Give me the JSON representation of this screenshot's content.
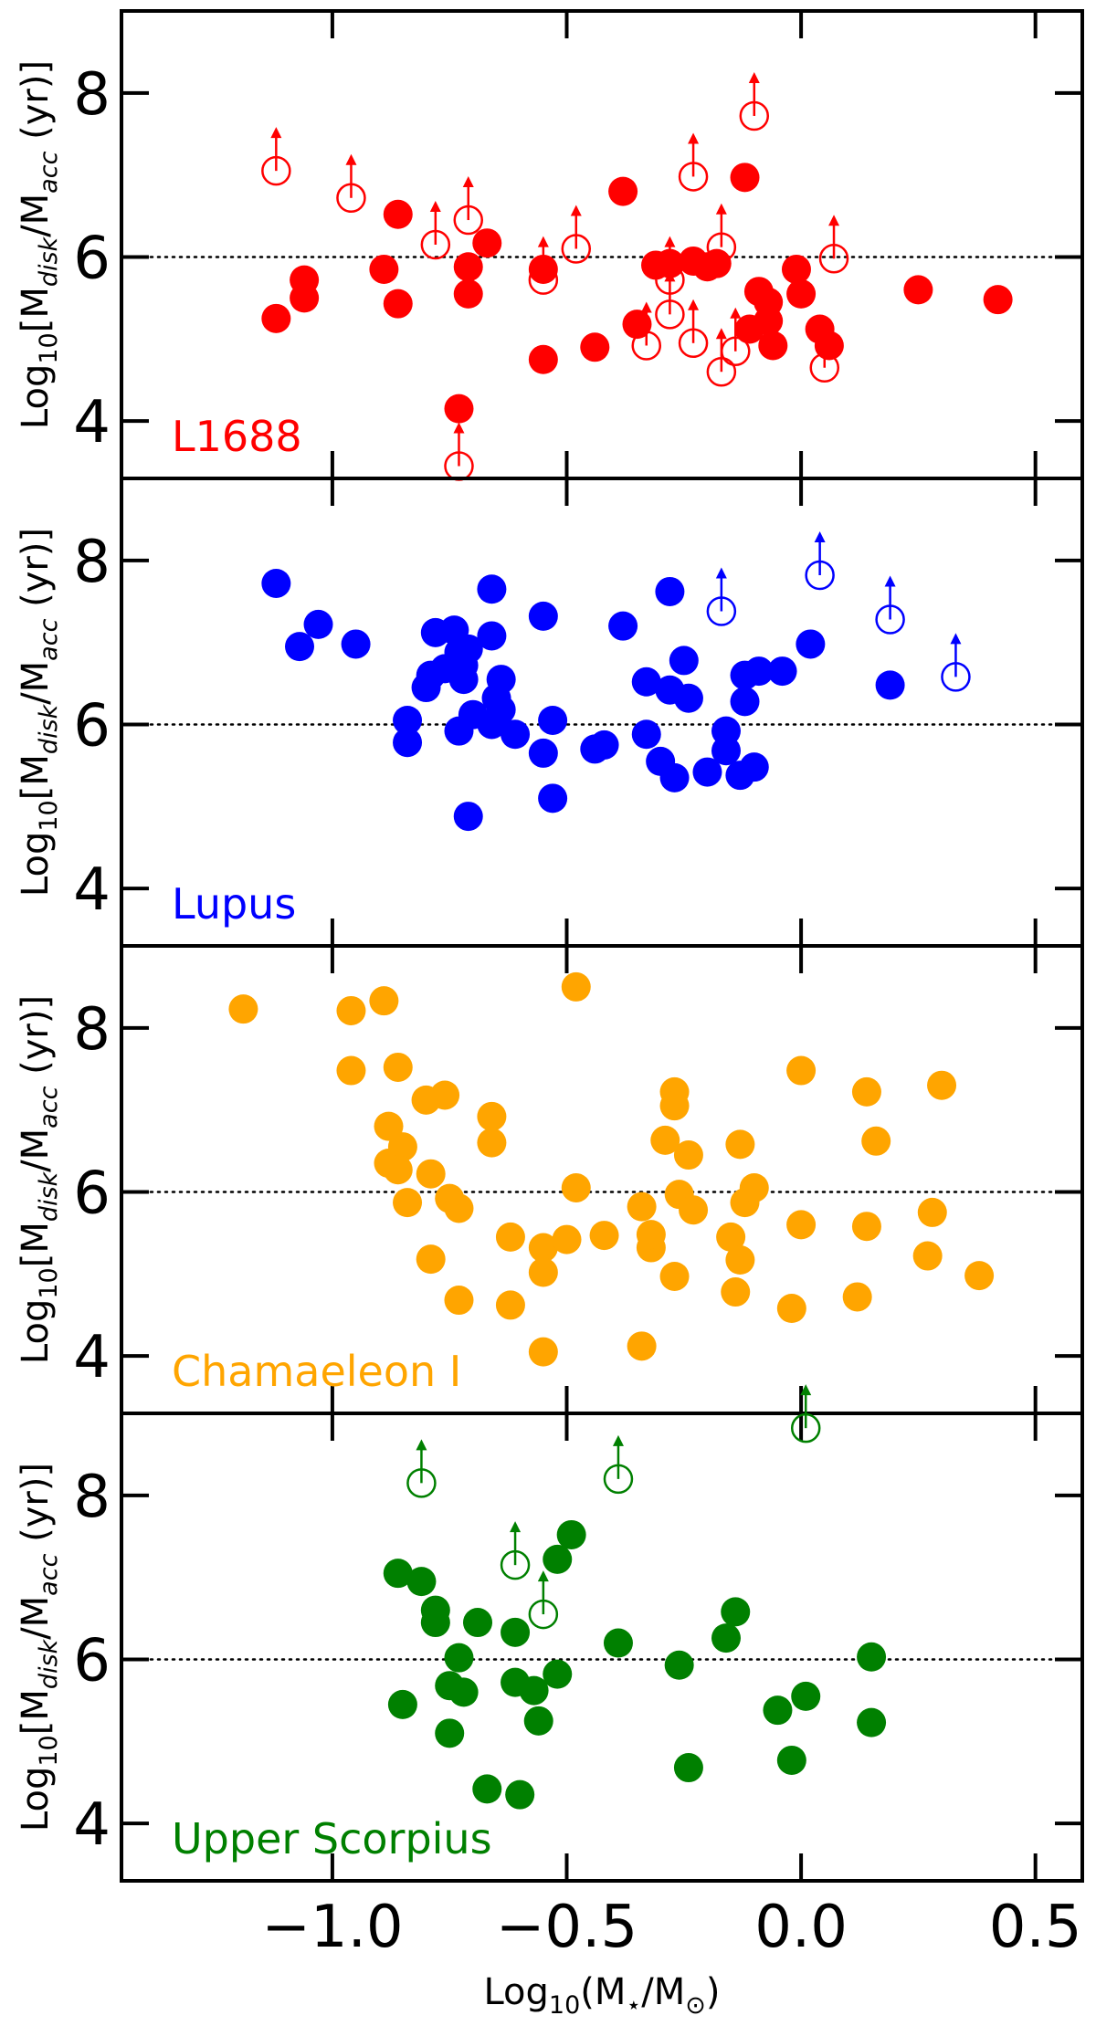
{
  "chart_data": {
    "type": "scatter",
    "xlabel": "Log₁₀(M⋆/M⊙)",
    "ylabel": "Log₁₀[M_disk/M_acc (yr)]",
    "xlim": [
      -1.45,
      0.6
    ],
    "ylim": [
      3.3,
      9.0
    ],
    "x_ticks": [
      -1.0,
      -0.5,
      0.0,
      0.5
    ],
    "x_tick_labels": [
      "−1.0",
      "−0.5",
      "0.0",
      "0.5"
    ],
    "y_ticks": [
      4,
      6,
      8
    ],
    "y_tick_labels": [
      "4",
      "6",
      "8"
    ],
    "reference_line_y": 6,
    "grid": false,
    "panels": [
      {
        "label": "L1688",
        "color": "#ff0000",
        "points": [
          [
            -1.12,
            5.25
          ],
          [
            -1.06,
            5.72
          ],
          [
            -1.06,
            5.5
          ],
          [
            -0.89,
            5.85
          ],
          [
            -0.86,
            6.52
          ],
          [
            -0.86,
            5.43
          ],
          [
            -0.71,
            5.88
          ],
          [
            -0.71,
            5.55
          ],
          [
            -0.67,
            6.17
          ],
          [
            -0.73,
            4.15
          ],
          [
            -0.55,
            5.85
          ],
          [
            -0.55,
            4.75
          ],
          [
            -0.44,
            4.9
          ],
          [
            -0.38,
            6.8
          ],
          [
            -0.35,
            5.18
          ],
          [
            -0.31,
            5.9
          ],
          [
            -0.28,
            5.92
          ],
          [
            -0.23,
            5.95
          ],
          [
            -0.2,
            5.88
          ],
          [
            -0.18,
            5.92
          ],
          [
            -0.12,
            6.97
          ],
          [
            -0.11,
            5.12
          ],
          [
            -0.09,
            5.58
          ],
          [
            -0.07,
            5.45
          ],
          [
            -0.07,
            5.22
          ],
          [
            -0.06,
            4.92
          ],
          [
            -0.01,
            5.85
          ],
          [
            0.0,
            5.55
          ],
          [
            0.04,
            5.12
          ],
          [
            0.06,
            4.92
          ],
          [
            0.25,
            5.6
          ],
          [
            0.42,
            5.48
          ]
        ],
        "lower_limits": [
          [
            -1.12,
            7.05
          ],
          [
            -0.96,
            6.72
          ],
          [
            -0.78,
            6.15
          ],
          [
            -0.71,
            6.45
          ],
          [
            -0.73,
            3.45
          ],
          [
            -0.55,
            5.72
          ],
          [
            -0.48,
            6.1
          ],
          [
            -0.33,
            4.92
          ],
          [
            -0.28,
            5.3
          ],
          [
            -0.28,
            5.72
          ],
          [
            -0.23,
            6.98
          ],
          [
            -0.23,
            4.95
          ],
          [
            -0.17,
            4.6
          ],
          [
            -0.17,
            6.12
          ],
          [
            -0.14,
            4.85
          ],
          [
            -0.1,
            7.72
          ],
          [
            0.05,
            4.65
          ],
          [
            0.07,
            5.98
          ]
        ]
      },
      {
        "label": "Lupus",
        "color": "#0000ff",
        "points": [
          [
            -1.12,
            7.72
          ],
          [
            -1.07,
            6.95
          ],
          [
            -1.03,
            7.22
          ],
          [
            -0.95,
            6.98
          ],
          [
            -0.84,
            6.05
          ],
          [
            -0.84,
            5.78
          ],
          [
            -0.78,
            7.12
          ],
          [
            -0.79,
            6.6
          ],
          [
            -0.8,
            6.45
          ],
          [
            -0.76,
            6.68
          ],
          [
            -0.74,
            7.15
          ],
          [
            -0.73,
            6.88
          ],
          [
            -0.72,
            6.55
          ],
          [
            -0.71,
            6.92
          ],
          [
            -0.72,
            6.72
          ],
          [
            -0.7,
            6.12
          ],
          [
            -0.73,
            5.92
          ],
          [
            -0.71,
            4.88
          ],
          [
            -0.66,
            7.08
          ],
          [
            -0.66,
            7.65
          ],
          [
            -0.65,
            6.32
          ],
          [
            -0.66,
            6.0
          ],
          [
            -0.64,
            6.55
          ],
          [
            -0.64,
            6.18
          ],
          [
            -0.61,
            5.88
          ],
          [
            -0.55,
            7.32
          ],
          [
            -0.55,
            5.65
          ],
          [
            -0.53,
            6.05
          ],
          [
            -0.53,
            5.1
          ],
          [
            -0.44,
            5.7
          ],
          [
            -0.42,
            5.75
          ],
          [
            -0.38,
            7.2
          ],
          [
            -0.33,
            6.52
          ],
          [
            -0.33,
            5.88
          ],
          [
            -0.3,
            5.55
          ],
          [
            -0.28,
            7.62
          ],
          [
            -0.28,
            6.42
          ],
          [
            -0.27,
            5.35
          ],
          [
            -0.25,
            6.78
          ],
          [
            -0.24,
            6.32
          ],
          [
            -0.2,
            5.42
          ],
          [
            -0.16,
            5.92
          ],
          [
            -0.16,
            5.68
          ],
          [
            -0.13,
            5.38
          ],
          [
            -0.12,
            6.6
          ],
          [
            -0.12,
            6.28
          ],
          [
            -0.1,
            5.48
          ],
          [
            -0.09,
            6.65
          ],
          [
            -0.04,
            6.65
          ],
          [
            0.02,
            6.98
          ],
          [
            0.19,
            6.48
          ]
        ],
        "lower_limits": [
          [
            -0.17,
            7.38
          ],
          [
            0.04,
            7.82
          ],
          [
            0.19,
            7.28
          ],
          [
            0.33,
            6.58
          ]
        ]
      },
      {
        "label": "Chamaeleon I",
        "color": "#ffa500",
        "points": [
          [
            -1.19,
            8.23
          ],
          [
            -0.96,
            8.21
          ],
          [
            -0.96,
            7.48
          ],
          [
            -0.89,
            8.33
          ],
          [
            -0.88,
            6.8
          ],
          [
            -0.88,
            6.35
          ],
          [
            -0.86,
            7.52
          ],
          [
            -0.85,
            6.55
          ],
          [
            -0.86,
            6.27
          ],
          [
            -0.84,
            5.87
          ],
          [
            -0.8,
            7.12
          ],
          [
            -0.79,
            6.22
          ],
          [
            -0.79,
            5.18
          ],
          [
            -0.76,
            7.18
          ],
          [
            -0.75,
            5.92
          ],
          [
            -0.73,
            5.8
          ],
          [
            -0.73,
            4.68
          ],
          [
            -0.66,
            6.92
          ],
          [
            -0.66,
            6.6
          ],
          [
            -0.62,
            5.45
          ],
          [
            -0.62,
            4.62
          ],
          [
            -0.55,
            5.32
          ],
          [
            -0.55,
            5.02
          ],
          [
            -0.55,
            4.05
          ],
          [
            -0.5,
            5.42
          ],
          [
            -0.48,
            8.5
          ],
          [
            -0.48,
            6.05
          ],
          [
            -0.42,
            5.47
          ],
          [
            -0.34,
            5.82
          ],
          [
            -0.34,
            4.12
          ],
          [
            -0.32,
            5.32
          ],
          [
            -0.32,
            5.48
          ],
          [
            -0.29,
            6.63
          ],
          [
            -0.27,
            7.22
          ],
          [
            -0.27,
            7.05
          ],
          [
            -0.27,
            4.97
          ],
          [
            -0.26,
            5.97
          ],
          [
            -0.24,
            6.45
          ],
          [
            -0.23,
            5.78
          ],
          [
            -0.15,
            5.45
          ],
          [
            -0.14,
            4.78
          ],
          [
            -0.13,
            6.58
          ],
          [
            -0.13,
            5.17
          ],
          [
            -0.12,
            5.87
          ],
          [
            -0.1,
            6.05
          ],
          [
            -0.02,
            4.58
          ],
          [
            0.0,
            7.48
          ],
          [
            0.0,
            5.6
          ],
          [
            0.12,
            4.72
          ],
          [
            0.14,
            7.22
          ],
          [
            0.14,
            5.58
          ],
          [
            0.16,
            6.62
          ],
          [
            0.27,
            5.22
          ],
          [
            0.28,
            5.75
          ],
          [
            0.3,
            7.3
          ],
          [
            0.38,
            4.98
          ]
        ],
        "lower_limits": []
      },
      {
        "label": "Upper Scorpius",
        "color": "#008000",
        "points": [
          [
            -0.86,
            7.05
          ],
          [
            -0.85,
            5.45
          ],
          [
            -0.81,
            6.95
          ],
          [
            -0.78,
            6.6
          ],
          [
            -0.78,
            6.45
          ],
          [
            -0.75,
            5.68
          ],
          [
            -0.75,
            5.1
          ],
          [
            -0.73,
            6.02
          ],
          [
            -0.72,
            5.6
          ],
          [
            -0.69,
            6.45
          ],
          [
            -0.67,
            4.42
          ],
          [
            -0.61,
            6.33
          ],
          [
            -0.61,
            5.72
          ],
          [
            -0.6,
            4.35
          ],
          [
            -0.57,
            5.62
          ],
          [
            -0.56,
            5.25
          ],
          [
            -0.52,
            7.22
          ],
          [
            -0.52,
            5.82
          ],
          [
            -0.49,
            7.52
          ],
          [
            -0.39,
            6.2
          ],
          [
            -0.26,
            5.93
          ],
          [
            -0.24,
            4.68
          ],
          [
            -0.16,
            6.26
          ],
          [
            -0.14,
            6.58
          ],
          [
            -0.05,
            5.38
          ],
          [
            -0.02,
            4.77
          ],
          [
            0.01,
            5.55
          ],
          [
            0.15,
            6.03
          ],
          [
            0.15,
            5.23
          ]
        ],
        "lower_limits": [
          [
            -0.81,
            8.15
          ],
          [
            -0.61,
            7.15
          ],
          [
            -0.55,
            6.55
          ],
          [
            -0.39,
            8.2
          ],
          [
            0.01,
            8.82
          ]
        ]
      }
    ]
  }
}
